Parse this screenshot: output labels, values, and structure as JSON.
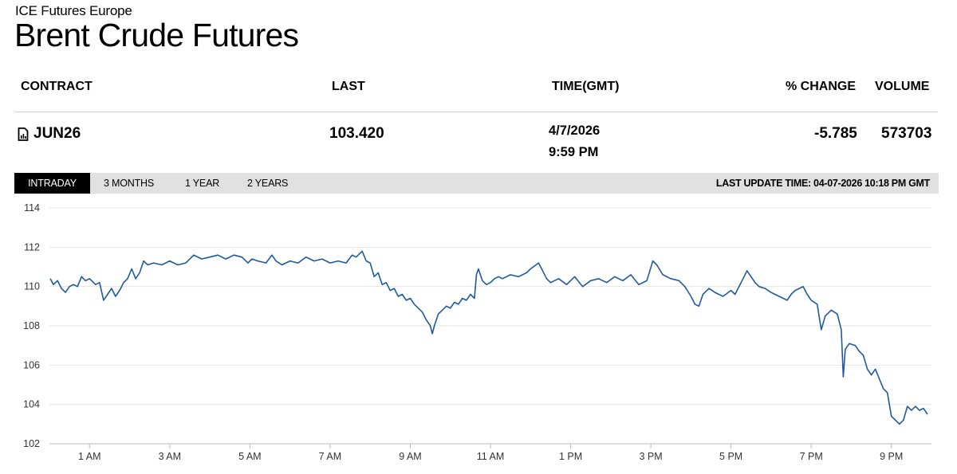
{
  "header": {
    "exchange": "ICE Futures Europe",
    "title": "Brent Crude Futures"
  },
  "quote_table": {
    "columns": {
      "contract": "CONTRACT",
      "last": "LAST",
      "time": "TIME(GMT)",
      "change": "% CHANGE",
      "volume": "VOLUME"
    },
    "row": {
      "contract": "JUN26",
      "contract_icon": "document-chart-icon",
      "last": "103.420",
      "date": "4/7/2026",
      "time": "9:59 PM",
      "change": "-5.785",
      "volume": "573703"
    }
  },
  "tabs": [
    {
      "label": "INTRADAY",
      "active": true
    },
    {
      "label": "3 MONTHS",
      "active": false
    },
    {
      "label": "1 YEAR",
      "active": false
    },
    {
      "label": "2 YEARS",
      "active": false
    }
  ],
  "last_update": "LAST UPDATE TIME: 04-07-2026 10:18 PM GMT",
  "colors": {
    "line": "#1f5a9e",
    "grid": "#e4e4e4",
    "tab_active_bg": "#000000",
    "tab_bar_bg": "#e1e1e1"
  },
  "chart_data": {
    "type": "line",
    "title": "",
    "xlabel": "",
    "ylabel": "",
    "ylim": [
      102,
      114
    ],
    "yticks": [
      102,
      104,
      106,
      108,
      110,
      112,
      114
    ],
    "xlim": [
      0,
      22
    ],
    "xticks": [
      {
        "hour": 1,
        "label": "1 AM"
      },
      {
        "hour": 3,
        "label": "3 AM"
      },
      {
        "hour": 5,
        "label": "5 AM"
      },
      {
        "hour": 7,
        "label": "7 AM"
      },
      {
        "hour": 9,
        "label": "9 AM"
      },
      {
        "hour": 11,
        "label": "11 AM"
      },
      {
        "hour": 13,
        "label": "1 PM"
      },
      {
        "hour": 15,
        "label": "3 PM"
      },
      {
        "hour": 17,
        "label": "5 PM"
      },
      {
        "hour": 19,
        "label": "7 PM"
      },
      {
        "hour": 21,
        "label": "9 PM"
      }
    ],
    "grid": true,
    "series": [
      {
        "values": [
          [
            0.02,
            110.4
          ],
          [
            0.1,
            110.1
          ],
          [
            0.2,
            110.3
          ],
          [
            0.3,
            109.9
          ],
          [
            0.4,
            109.7
          ],
          [
            0.5,
            110.0
          ],
          [
            0.6,
            110.1
          ],
          [
            0.7,
            110.0
          ],
          [
            0.8,
            110.5
          ],
          [
            0.9,
            110.3
          ],
          [
            1.0,
            110.4
          ],
          [
            1.15,
            110.1
          ],
          [
            1.25,
            110.2
          ],
          [
            1.35,
            109.3
          ],
          [
            1.45,
            109.6
          ],
          [
            1.55,
            109.9
          ],
          [
            1.65,
            109.5
          ],
          [
            1.75,
            109.8
          ],
          [
            1.85,
            110.2
          ],
          [
            1.95,
            110.4
          ],
          [
            2.05,
            110.9
          ],
          [
            2.15,
            110.4
          ],
          [
            2.25,
            110.7
          ],
          [
            2.35,
            111.3
          ],
          [
            2.45,
            111.1
          ],
          [
            2.6,
            111.2
          ],
          [
            2.8,
            111.1
          ],
          [
            3.0,
            111.3
          ],
          [
            3.2,
            111.1
          ],
          [
            3.4,
            111.2
          ],
          [
            3.6,
            111.6
          ],
          [
            3.8,
            111.4
          ],
          [
            4.0,
            111.5
          ],
          [
            4.2,
            111.6
          ],
          [
            4.4,
            111.4
          ],
          [
            4.6,
            111.6
          ],
          [
            4.8,
            111.5
          ],
          [
            4.95,
            111.2
          ],
          [
            5.05,
            111.4
          ],
          [
            5.2,
            111.3
          ],
          [
            5.4,
            111.2
          ],
          [
            5.55,
            111.6
          ],
          [
            5.65,
            111.3
          ],
          [
            5.8,
            111.1
          ],
          [
            6.0,
            111.3
          ],
          [
            6.2,
            111.2
          ],
          [
            6.4,
            111.5
          ],
          [
            6.6,
            111.3
          ],
          [
            6.8,
            111.4
          ],
          [
            7.0,
            111.2
          ],
          [
            7.2,
            111.3
          ],
          [
            7.4,
            111.2
          ],
          [
            7.55,
            111.6
          ],
          [
            7.65,
            111.5
          ],
          [
            7.8,
            111.8
          ],
          [
            7.9,
            111.3
          ],
          [
            8.0,
            111.2
          ],
          [
            8.1,
            110.5
          ],
          [
            8.2,
            110.7
          ],
          [
            8.3,
            110.1
          ],
          [
            8.4,
            110.2
          ],
          [
            8.5,
            109.8
          ],
          [
            8.6,
            109.9
          ],
          [
            8.7,
            109.5
          ],
          [
            8.8,
            109.6
          ],
          [
            8.9,
            109.3
          ],
          [
            9.0,
            109.4
          ],
          [
            9.1,
            109.1
          ],
          [
            9.2,
            108.9
          ],
          [
            9.3,
            108.7
          ],
          [
            9.4,
            108.3
          ],
          [
            9.5,
            108.0
          ],
          [
            9.55,
            107.6
          ],
          [
            9.6,
            108.0
          ],
          [
            9.7,
            108.6
          ],
          [
            9.8,
            108.8
          ],
          [
            9.9,
            109.0
          ],
          [
            10.0,
            108.9
          ],
          [
            10.1,
            109.2
          ],
          [
            10.2,
            109.1
          ],
          [
            10.3,
            109.4
          ],
          [
            10.4,
            109.3
          ],
          [
            10.5,
            109.6
          ],
          [
            10.6,
            109.4
          ],
          [
            10.65,
            110.6
          ],
          [
            10.7,
            110.9
          ],
          [
            10.8,
            110.3
          ],
          [
            10.9,
            110.1
          ],
          [
            11.0,
            110.2
          ],
          [
            11.1,
            110.4
          ],
          [
            11.2,
            110.5
          ],
          [
            11.3,
            110.4
          ],
          [
            11.5,
            110.6
          ],
          [
            11.7,
            110.5
          ],
          [
            11.9,
            110.7
          ],
          [
            12.0,
            110.9
          ],
          [
            12.2,
            111.2
          ],
          [
            12.3,
            110.8
          ],
          [
            12.4,
            110.4
          ],
          [
            12.5,
            110.2
          ],
          [
            12.7,
            110.4
          ],
          [
            12.9,
            110.1
          ],
          [
            13.1,
            110.5
          ],
          [
            13.3,
            110.0
          ],
          [
            13.5,
            110.3
          ],
          [
            13.7,
            110.4
          ],
          [
            13.9,
            110.2
          ],
          [
            14.1,
            110.5
          ],
          [
            14.3,
            110.3
          ],
          [
            14.5,
            110.6
          ],
          [
            14.7,
            110.1
          ],
          [
            14.9,
            110.3
          ],
          [
            15.05,
            111.3
          ],
          [
            15.15,
            111.1
          ],
          [
            15.3,
            110.6
          ],
          [
            15.5,
            110.4
          ],
          [
            15.7,
            110.3
          ],
          [
            15.85,
            110.0
          ],
          [
            16.0,
            109.5
          ],
          [
            16.1,
            109.1
          ],
          [
            16.2,
            109.0
          ],
          [
            16.3,
            109.6
          ],
          [
            16.45,
            109.9
          ],
          [
            16.6,
            109.7
          ],
          [
            16.8,
            109.5
          ],
          [
            17.0,
            109.8
          ],
          [
            17.1,
            109.6
          ],
          [
            17.2,
            110.0
          ],
          [
            17.3,
            110.4
          ],
          [
            17.4,
            110.8
          ],
          [
            17.5,
            110.5
          ],
          [
            17.6,
            110.2
          ],
          [
            17.7,
            110.0
          ],
          [
            17.85,
            109.9
          ],
          [
            18.0,
            109.7
          ],
          [
            18.2,
            109.5
          ],
          [
            18.4,
            109.3
          ],
          [
            18.5,
            109.6
          ],
          [
            18.6,
            109.8
          ],
          [
            18.7,
            109.9
          ],
          [
            18.8,
            110.0
          ],
          [
            18.9,
            109.6
          ],
          [
            19.0,
            109.3
          ],
          [
            19.15,
            109.1
          ],
          [
            19.25,
            107.8
          ],
          [
            19.35,
            108.5
          ],
          [
            19.5,
            108.8
          ],
          [
            19.65,
            108.6
          ],
          [
            19.75,
            107.8
          ],
          [
            19.8,
            105.4
          ],
          [
            19.85,
            106.8
          ],
          [
            19.95,
            107.1
          ],
          [
            20.1,
            107.0
          ],
          [
            20.2,
            106.7
          ],
          [
            20.3,
            106.5
          ],
          [
            20.4,
            105.8
          ],
          [
            20.5,
            105.5
          ],
          [
            20.6,
            105.8
          ],
          [
            20.7,
            105.3
          ],
          [
            20.8,
            104.8
          ],
          [
            20.9,
            104.6
          ],
          [
            21.0,
            103.4
          ],
          [
            21.1,
            103.2
          ],
          [
            21.2,
            103.0
          ],
          [
            21.3,
            103.2
          ],
          [
            21.4,
            103.9
          ],
          [
            21.5,
            103.7
          ],
          [
            21.6,
            103.9
          ],
          [
            21.7,
            103.7
          ],
          [
            21.8,
            103.8
          ],
          [
            21.9,
            103.5
          ]
        ]
      }
    ]
  }
}
